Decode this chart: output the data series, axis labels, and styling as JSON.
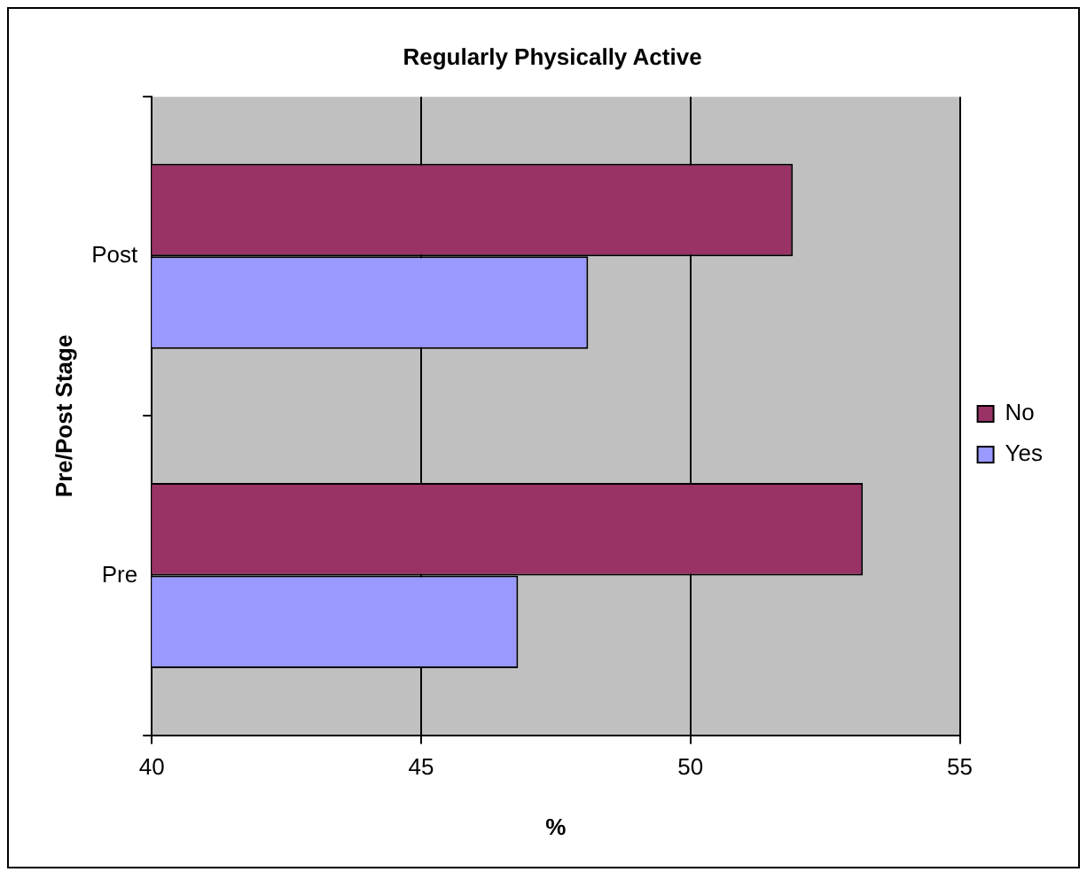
{
  "chart_data": {
    "type": "bar",
    "orientation": "horizontal",
    "title": "Regularly Physically Active",
    "xlabel": "%",
    "ylabel": "Pre/Post Stage",
    "categories": [
      "Post",
      "Pre"
    ],
    "series": [
      {
        "name": "No",
        "color": "#993366",
        "values": [
          51.9,
          53.2
        ]
      },
      {
        "name": "Yes",
        "color": "#9999ff",
        "values": [
          48.1,
          46.8
        ]
      }
    ],
    "xlim": [
      40,
      55
    ],
    "xticks": [
      40,
      45,
      50,
      55
    ],
    "grid": "x",
    "legend": "right"
  }
}
